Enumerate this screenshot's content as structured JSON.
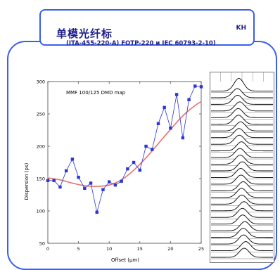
{
  "header": {
    "title": "单模光纤标",
    "tag": "KH",
    "subtitle": "(ITA-455-220-A) FOTP-220 и IEC 60793-2-10)"
  },
  "chart_data": {
    "type": "line",
    "title": "MMF 100/125 DMD map",
    "xlabel": "Offset (μm)",
    "ylabel": "Dispersion (ps)",
    "xlim": [
      0,
      25
    ],
    "ylim": [
      50,
      300
    ],
    "xticks": [
      0,
      5,
      10,
      15,
      20,
      25
    ],
    "yticks": [
      50,
      100,
      150,
      200,
      250,
      300
    ],
    "grid": false,
    "series": [
      {
        "color": "#2b35d8",
        "marker": "square",
        "x": [
          0,
          1,
          2,
          3,
          4,
          5,
          6,
          7,
          8,
          9,
          10,
          11,
          12,
          13,
          14,
          15,
          16,
          17,
          18,
          19,
          20,
          21,
          22,
          23,
          24,
          25
        ],
        "y": [
          147,
          147,
          137,
          162,
          180,
          152,
          135,
          143,
          98,
          133,
          145,
          140,
          146,
          165,
          175,
          163,
          200,
          195,
          235,
          260,
          228,
          280,
          213,
          272,
          293,
          292
        ]
      },
      {
        "color": "#e8706c",
        "marker": "none",
        "x": [
          0,
          2,
          4,
          6,
          8,
          10,
          12,
          14,
          16,
          18,
          20,
          22,
          24,
          25
        ],
        "y": [
          151,
          148,
          143,
          139,
          138,
          140,
          148,
          163,
          182,
          204,
          226,
          247,
          263,
          269
        ]
      }
    ]
  },
  "ridge_plot": {
    "trace_count": 26,
    "color": "#000000"
  }
}
